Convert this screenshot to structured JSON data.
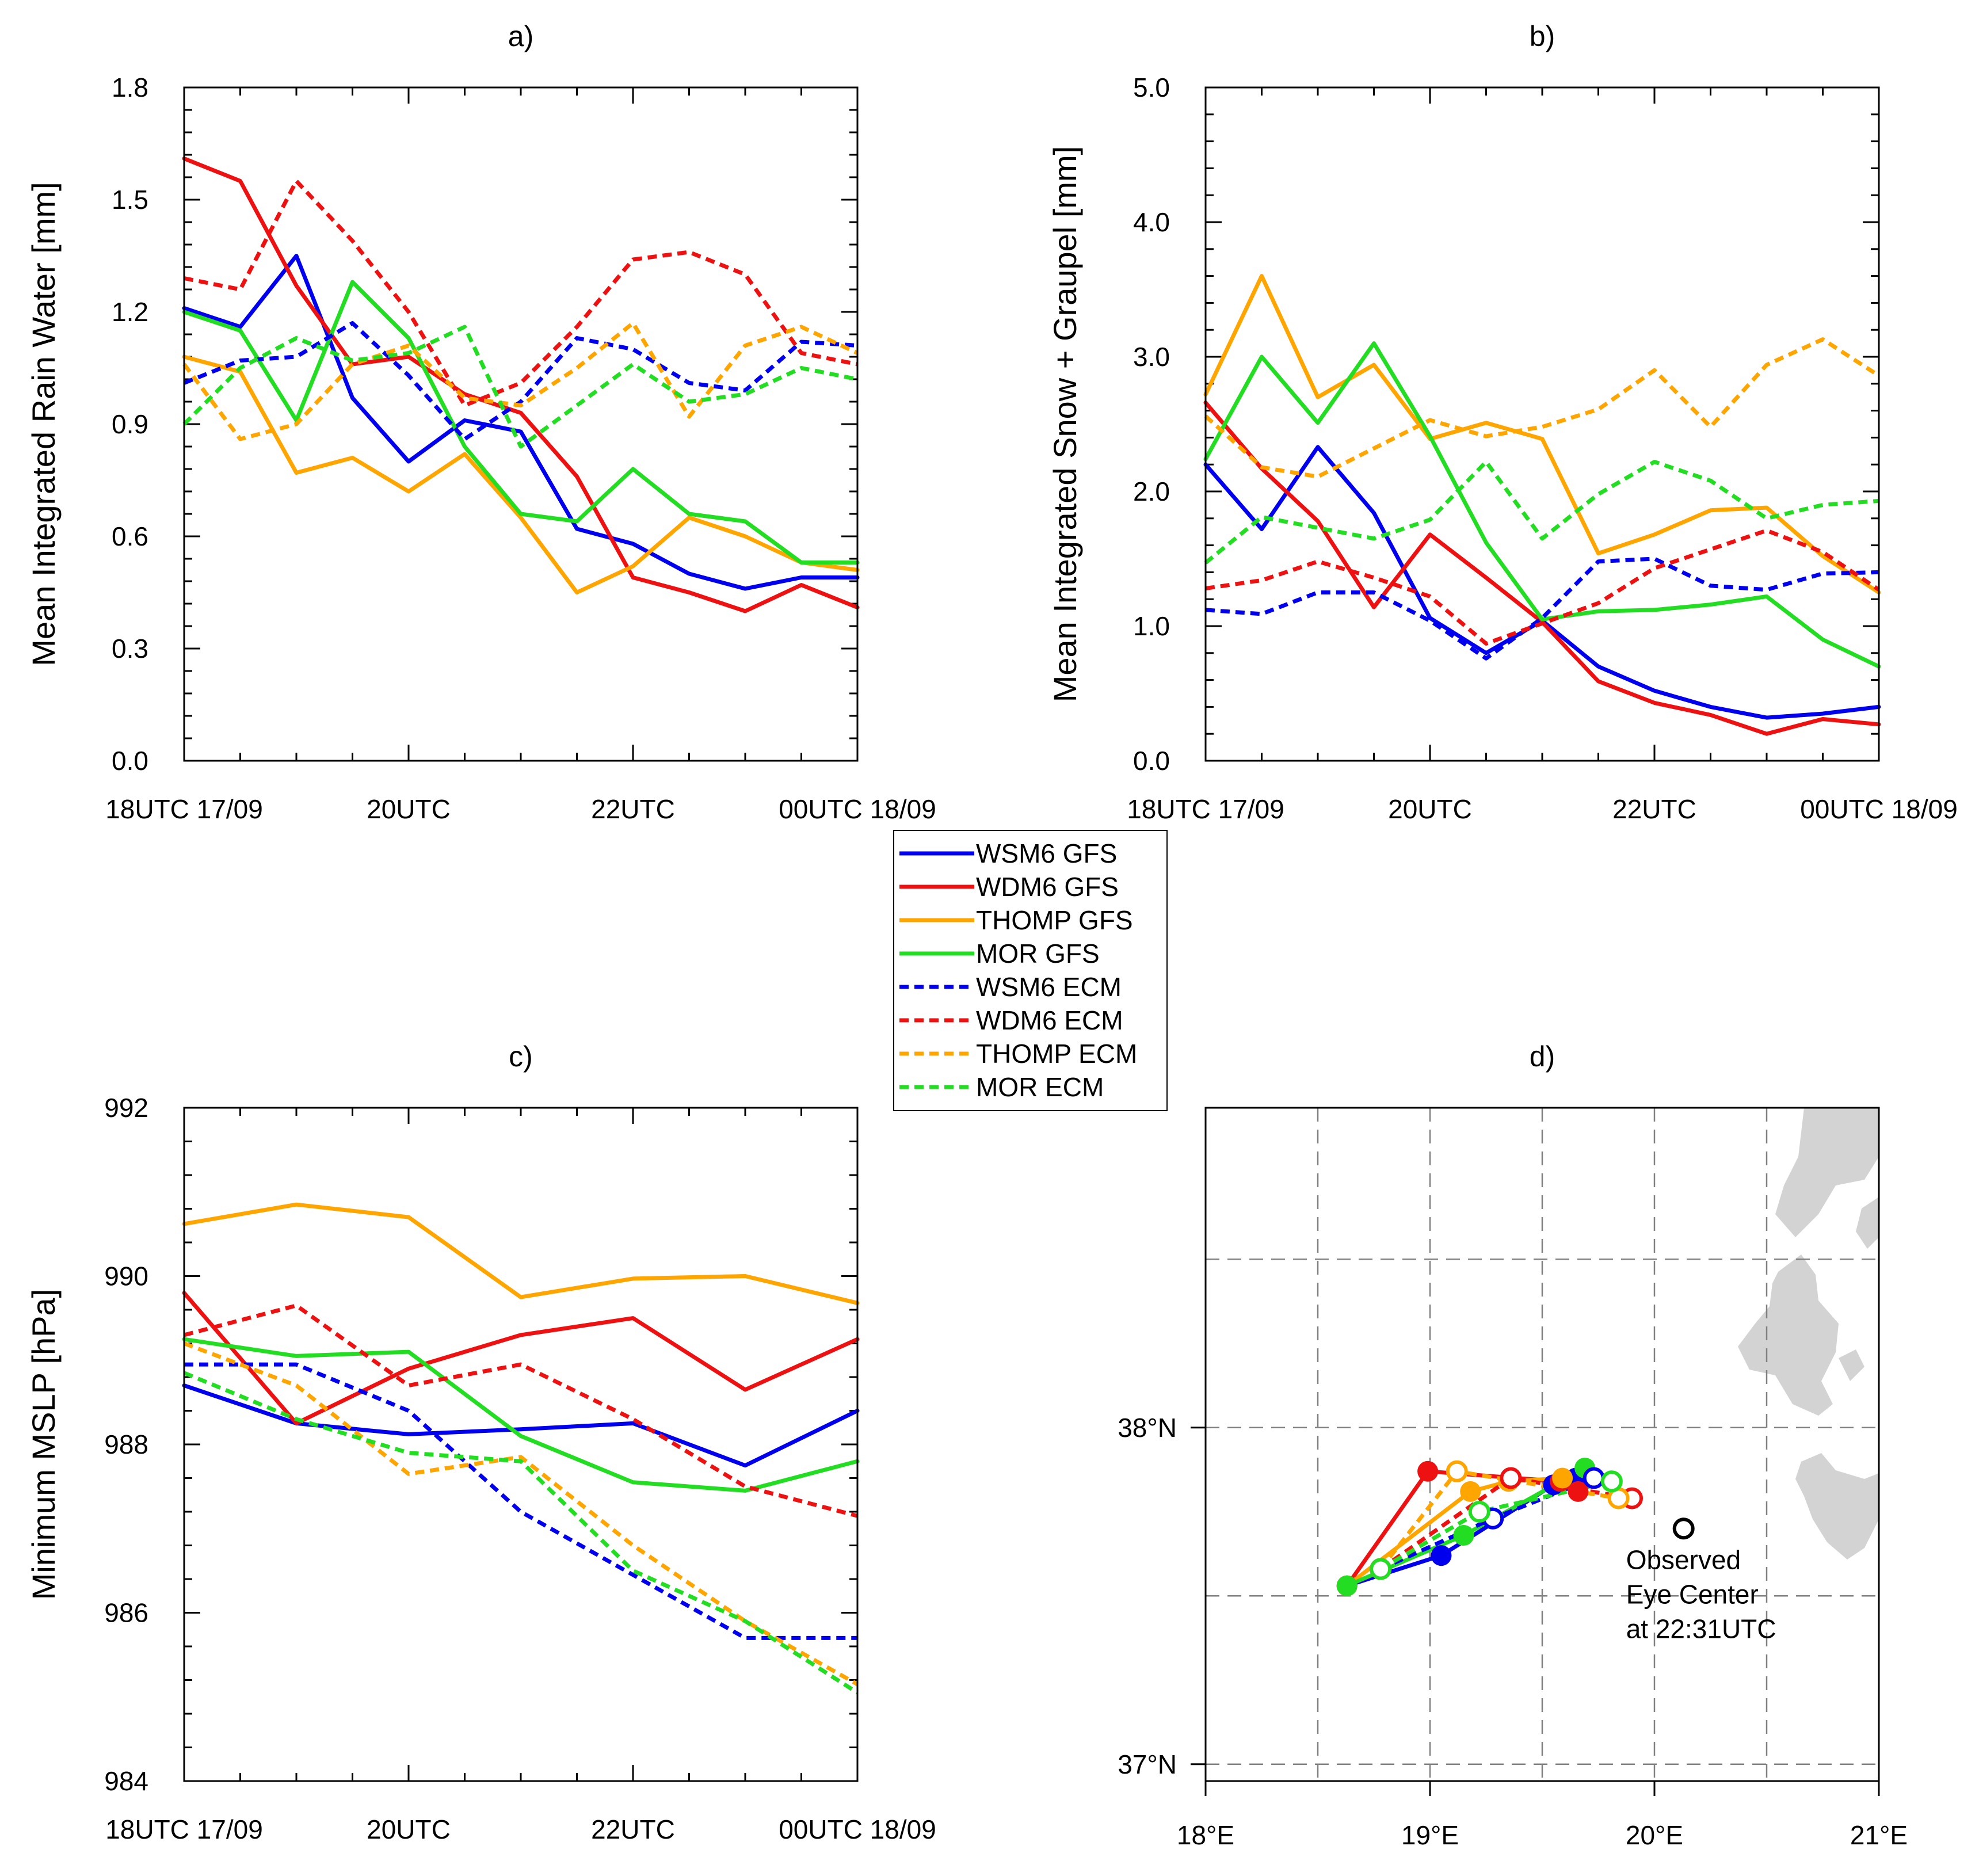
{
  "colors": {
    "WSM6": "#0000ee",
    "WDM6": "#ee1111",
    "THOMP": "#ffa500",
    "MOR": "#22dd22",
    "land": "#d3d3d3",
    "grid": "#808080",
    "observed": "#000000"
  },
  "legend": {
    "entries": [
      {
        "label": "WSM6 GFS",
        "color": "WSM6",
        "dashed": false
      },
      {
        "label": "WDM6 GFS",
        "color": "WDM6",
        "dashed": false
      },
      {
        "label": "THOMP GFS",
        "color": "THOMP",
        "dashed": false
      },
      {
        "label": "MOR GFS",
        "color": "MOR",
        "dashed": false
      },
      {
        "label": "WSM6 ECM",
        "color": "WSM6",
        "dashed": true
      },
      {
        "label": "WDM6 ECM",
        "color": "WDM6",
        "dashed": true
      },
      {
        "label": "THOMP ECM",
        "color": "THOMP",
        "dashed": true
      },
      {
        "label": "MOR ECM",
        "color": "MOR",
        "dashed": true
      }
    ]
  },
  "chart_data": [
    {
      "id": "a",
      "type": "line",
      "title": "a)",
      "xlabel": "",
      "ylabel": "Mean Integrated Rain Water [mm]",
      "xlim": [
        0,
        6
      ],
      "ylim": [
        0,
        1.8
      ],
      "yticks": [
        0.0,
        0.3,
        0.6,
        0.9,
        1.2,
        1.5,
        1.8
      ],
      "ytick_labels": [
        "0.0",
        "0.3",
        "0.6",
        "0.9",
        "1.2",
        "1.5",
        "1.8"
      ],
      "xticks": [
        0,
        2,
        4,
        6
      ],
      "xtick_labels": [
        "18UTC 17/09",
        "20UTC",
        "22UTC",
        "00UTC 18/09"
      ],
      "x": [
        0,
        0.5,
        1,
        1.5,
        2,
        2.5,
        3,
        3.5,
        4,
        4.5,
        5,
        5.5,
        6
      ],
      "series": [
        {
          "name": "WSM6 GFS",
          "color": "WSM6",
          "dashed": false,
          "values": [
            1.21,
            1.16,
            1.35,
            0.97,
            0.8,
            0.91,
            0.88,
            0.62,
            0.58,
            0.5,
            0.46,
            0.49,
            0.49
          ]
        },
        {
          "name": "WDM6 GFS",
          "color": "WDM6",
          "dashed": false,
          "values": [
            1.61,
            1.55,
            1.27,
            1.06,
            1.08,
            0.98,
            0.93,
            0.76,
            0.49,
            0.45,
            0.4,
            0.47,
            0.41
          ]
        },
        {
          "name": "THOMP GFS",
          "color": "THOMP",
          "dashed": false,
          "values": [
            1.08,
            1.04,
            0.77,
            0.81,
            0.72,
            0.82,
            0.65,
            0.45,
            0.52,
            0.65,
            0.6,
            0.53,
            0.51
          ]
        },
        {
          "name": "MOR GFS",
          "color": "MOR",
          "dashed": false,
          "values": [
            1.2,
            1.15,
            0.91,
            1.28,
            1.13,
            0.84,
            0.66,
            0.64,
            0.78,
            0.66,
            0.64,
            0.53,
            0.53
          ]
        },
        {
          "name": "WSM6 ECM",
          "color": "WSM6",
          "dashed": true,
          "values": [
            1.01,
            1.07,
            1.08,
            1.17,
            1.03,
            0.86,
            0.96,
            1.13,
            1.1,
            1.01,
            0.99,
            1.12,
            1.11
          ]
        },
        {
          "name": "WDM6 ECM",
          "color": "WDM6",
          "dashed": true,
          "values": [
            1.29,
            1.26,
            1.55,
            1.39,
            1.2,
            0.95,
            1.01,
            1.16,
            1.34,
            1.36,
            1.3,
            1.09,
            1.06
          ]
        },
        {
          "name": "THOMP ECM",
          "color": "THOMP",
          "dashed": true,
          "values": [
            1.06,
            0.86,
            0.9,
            1.06,
            1.11,
            0.97,
            0.95,
            1.05,
            1.17,
            0.92,
            1.11,
            1.16,
            1.09
          ]
        },
        {
          "name": "MOR ECM",
          "color": "MOR",
          "dashed": true,
          "values": [
            0.9,
            1.05,
            1.13,
            1.07,
            1.09,
            1.16,
            0.84,
            0.95,
            1.06,
            0.96,
            0.98,
            1.05,
            1.02
          ]
        }
      ]
    },
    {
      "id": "b",
      "type": "line",
      "title": "b)",
      "xlabel": "",
      "ylabel": "Mean Integrated Snow + Graupel [mm]",
      "xlim": [
        0,
        6
      ],
      "ylim": [
        0,
        5
      ],
      "yticks": [
        0,
        1,
        2,
        3,
        4,
        5
      ],
      "ytick_labels": [
        "0.0",
        "1.0",
        "2.0",
        "3.0",
        "4.0",
        "5.0"
      ],
      "xticks": [
        0,
        2,
        4,
        6
      ],
      "xtick_labels": [
        "18UTC 17/09",
        "20UTC",
        "22UTC",
        "00UTC 18/09"
      ],
      "x": [
        0,
        0.5,
        1,
        1.5,
        2,
        2.5,
        3,
        3.5,
        4,
        4.5,
        5,
        5.5,
        6
      ],
      "series": [
        {
          "name": "WSM6 GFS",
          "color": "WSM6",
          "dashed": false,
          "values": [
            2.2,
            1.72,
            2.33,
            1.84,
            1.06,
            0.8,
            1.04,
            0.7,
            0.52,
            0.4,
            0.32,
            0.35,
            0.4
          ]
        },
        {
          "name": "WDM6 GFS",
          "color": "WDM6",
          "dashed": false,
          "values": [
            2.66,
            2.17,
            1.78,
            1.14,
            1.68,
            1.36,
            1.03,
            0.59,
            0.43,
            0.34,
            0.2,
            0.31,
            0.27
          ]
        },
        {
          "name": "THOMP GFS",
          "color": "THOMP",
          "dashed": false,
          "values": [
            2.72,
            3.6,
            2.7,
            2.94,
            2.39,
            2.51,
            2.39,
            1.54,
            1.68,
            1.86,
            1.88,
            1.52,
            1.25
          ]
        },
        {
          "name": "MOR GFS",
          "color": "MOR",
          "dashed": false,
          "values": [
            2.24,
            3.0,
            2.51,
            3.1,
            2.41,
            1.62,
            1.05,
            1.11,
            1.12,
            1.16,
            1.22,
            0.9,
            0.7
          ]
        },
        {
          "name": "WSM6 ECM",
          "color": "WSM6",
          "dashed": true,
          "values": [
            1.12,
            1.09,
            1.25,
            1.25,
            1.04,
            0.76,
            1.06,
            1.48,
            1.5,
            1.3,
            1.27,
            1.39,
            1.4
          ]
        },
        {
          "name": "WDM6 ECM",
          "color": "WDM6",
          "dashed": true,
          "values": [
            1.28,
            1.34,
            1.48,
            1.36,
            1.22,
            0.87,
            1.02,
            1.17,
            1.43,
            1.57,
            1.71,
            1.55,
            1.27
          ]
        },
        {
          "name": "THOMP ECM",
          "color": "THOMP",
          "dashed": true,
          "values": [
            2.56,
            2.18,
            2.11,
            2.32,
            2.53,
            2.41,
            2.48,
            2.61,
            2.9,
            2.48,
            2.94,
            3.13,
            2.86
          ]
        },
        {
          "name": "MOR ECM",
          "color": "MOR",
          "dashed": true,
          "values": [
            1.47,
            1.81,
            1.73,
            1.65,
            1.79,
            2.22,
            1.65,
            1.98,
            2.22,
            2.08,
            1.8,
            1.9,
            1.93
          ]
        }
      ]
    },
    {
      "id": "c",
      "type": "line",
      "title": "c)",
      "xlabel": "",
      "ylabel": "Minimum MSLP [hPa]",
      "xlim": [
        0,
        6
      ],
      "ylim": [
        984,
        992
      ],
      "yticks": [
        984,
        986,
        988,
        990,
        992
      ],
      "ytick_labels": [
        "984",
        "986",
        "988",
        "990",
        "992"
      ],
      "xticks": [
        0,
        2,
        4,
        6
      ],
      "xtick_labels": [
        "18UTC 17/09",
        "20UTC",
        "22UTC",
        "00UTC 18/09"
      ],
      "x": [
        0,
        1,
        2,
        3,
        4,
        5,
        6
      ],
      "series": [
        {
          "name": "WSM6 GFS",
          "color": "WSM6",
          "dashed": false,
          "values": [
            988.7,
            988.25,
            988.12,
            988.18,
            988.25,
            987.75,
            988.4
          ]
        },
        {
          "name": "WDM6 GFS",
          "color": "WDM6",
          "dashed": false,
          "values": [
            989.8,
            988.25,
            988.9,
            989.3,
            989.5,
            988.65,
            989.25
          ]
        },
        {
          "name": "THOMP GFS",
          "color": "THOMP",
          "dashed": false,
          "values": [
            990.62,
            990.85,
            990.7,
            989.75,
            989.97,
            990.0,
            989.68
          ]
        },
        {
          "name": "MOR GFS",
          "color": "MOR",
          "dashed": false,
          "values": [
            989.25,
            989.05,
            989.1,
            988.1,
            987.55,
            987.45,
            987.8
          ]
        },
        {
          "name": "WSM6 ECM",
          "color": "WSM6",
          "dashed": true,
          "values": [
            988.95,
            988.95,
            988.4,
            987.2,
            986.45,
            985.7,
            985.7
          ]
        },
        {
          "name": "WDM6 ECM",
          "color": "WDM6",
          "dashed": true,
          "values": [
            989.3,
            989.65,
            988.7,
            988.95,
            988.3,
            987.5,
            987.15
          ]
        },
        {
          "name": "THOMP ECM",
          "color": "THOMP",
          "dashed": true,
          "values": [
            989.2,
            988.7,
            987.65,
            987.85,
            986.8,
            985.9,
            985.15
          ]
        },
        {
          "name": "MOR ECM",
          "color": "MOR",
          "dashed": true,
          "values": [
            988.85,
            988.3,
            987.9,
            987.8,
            986.5,
            985.9,
            985.05
          ]
        }
      ]
    },
    {
      "id": "d",
      "type": "scatter",
      "title": "d)",
      "xlabel": "",
      "ylabel": "",
      "xlim": [
        18,
        21
      ],
      "ylim": [
        36.95,
        38.95
      ],
      "xticks": [
        18,
        19,
        20,
        21
      ],
      "xtick_labels": [
        "18°E",
        "19°E",
        "20°E",
        "21°E"
      ],
      "yticks": [
        37,
        38
      ],
      "ytick_labels": [
        "37°N",
        "38°N"
      ],
      "grid_lon": [
        18.5,
        19,
        19.5,
        20,
        20.5
      ],
      "grid_lat": [
        37.5,
        38,
        38.5
      ],
      "series": [
        {
          "name": "WSM6 GFS",
          "color": "WSM6",
          "dashed": false,
          "filled": true,
          "points": [
            [
              18.63,
              37.53
            ],
            [
              19.05,
              37.62
            ],
            [
              19.55,
              37.83
            ],
            [
              19.65,
              37.85
            ]
          ]
        },
        {
          "name": "WDM6 GFS",
          "color": "WDM6",
          "dashed": false,
          "filled": true,
          "points": [
            [
              18.63,
              37.53
            ],
            [
              18.99,
              37.87
            ],
            [
              19.58,
              37.84
            ],
            [
              19.66,
              37.81
            ]
          ]
        },
        {
          "name": "THOMP GFS",
          "color": "THOMP",
          "dashed": false,
          "filled": true,
          "points": [
            [
              18.63,
              37.53
            ],
            [
              19.18,
              37.81
            ],
            [
              19.35,
              37.84
            ],
            [
              19.59,
              37.85
            ]
          ]
        },
        {
          "name": "MOR GFS",
          "color": "MOR",
          "dashed": false,
          "filled": true,
          "points": [
            [
              18.63,
              37.53
            ],
            [
              19.15,
              37.68
            ],
            [
              19.69,
              37.88
            ]
          ]
        },
        {
          "name": "WSM6 ECM",
          "color": "WSM6",
          "dashed": true,
          "filled": false,
          "points": [
            [
              18.78,
              37.58
            ],
            [
              19.28,
              37.73
            ],
            [
              19.73,
              37.85
            ]
          ]
        },
        {
          "name": "WDM6 ECM",
          "color": "WDM6",
          "dashed": true,
          "filled": false,
          "points": [
            [
              18.78,
              37.58
            ],
            [
              19.36,
              37.85
            ],
            [
              19.9,
              37.79
            ]
          ]
        },
        {
          "name": "THOMP ECM",
          "color": "THOMP",
          "dashed": true,
          "filled": false,
          "points": [
            [
              18.78,
              37.58
            ],
            [
              19.12,
              37.87
            ],
            [
              19.84,
              37.79
            ]
          ]
        },
        {
          "name": "MOR ECM",
          "color": "MOR",
          "dashed": true,
          "filled": false,
          "points": [
            [
              18.78,
              37.58
            ],
            [
              19.22,
              37.75
            ],
            [
              19.81,
              37.84
            ]
          ]
        }
      ],
      "observed": {
        "lon": 20.13,
        "lat": 37.7,
        "label_lines": [
          "Observed",
          "Eye Center",
          "at 22:31UTC"
        ]
      }
    }
  ]
}
